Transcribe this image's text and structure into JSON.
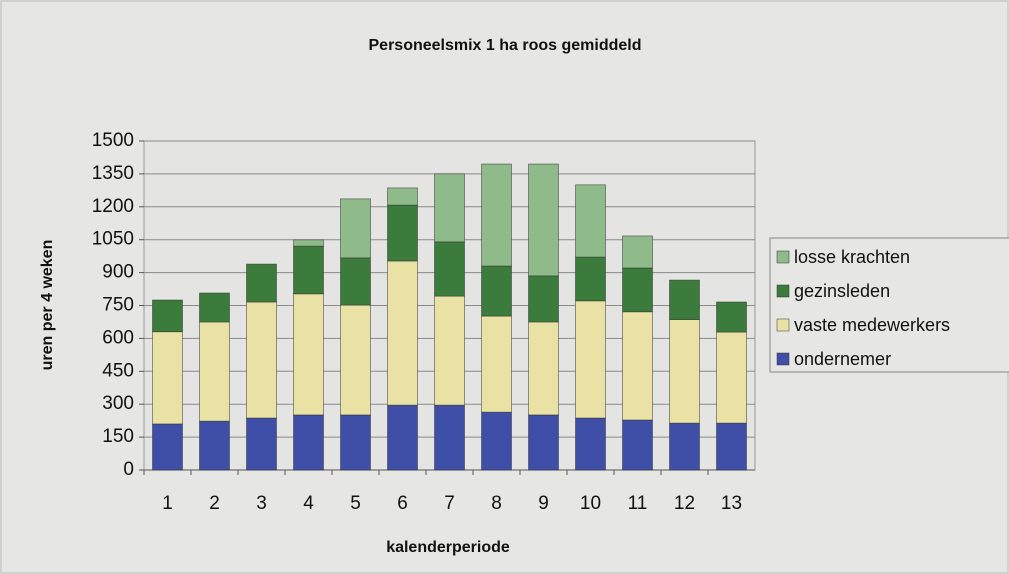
{
  "chart_data": {
    "type": "stacked-bar",
    "title": "Personeelsmix 1 ha roos gemiddeld",
    "x_label": "kalenderperiode",
    "y_label": "uren per 4 weken",
    "categories": [
      "1",
      "2",
      "3",
      "4",
      "5",
      "6",
      "7",
      "8",
      "9",
      "10",
      "11",
      "12",
      "13"
    ],
    "series": [
      {
        "name": "ondernemer",
        "color": "#3f4ea6",
        "values": [
          210,
          223,
          237,
          251,
          251,
          296,
          296,
          264,
          251,
          237,
          228,
          214,
          214
        ]
      },
      {
        "name": "vaste medewerkers",
        "color": "#e9e2a4",
        "values": [
          420,
          452,
          529,
          552,
          501,
          657,
          497,
          438,
          424,
          534,
          493,
          472,
          415
        ]
      },
      {
        "name": "gezinsleden",
        "color": "#3b7b3b",
        "values": [
          145,
          132,
          173,
          218,
          215,
          255,
          247,
          228,
          210,
          200,
          200,
          180,
          137
        ]
      },
      {
        "name": "losse krachten",
        "color": "#8fba8a",
        "values": [
          0,
          0,
          0,
          28,
          269,
          78,
          310,
          465,
          510,
          329,
          146,
          0,
          0
        ]
      }
    ],
    "ylim": [
      0,
      1500
    ],
    "yticks": [
      0,
      150,
      300,
      450,
      600,
      750,
      900,
      1050,
      1200,
      1350,
      1500
    ],
    "grid": true,
    "legend": "right"
  }
}
